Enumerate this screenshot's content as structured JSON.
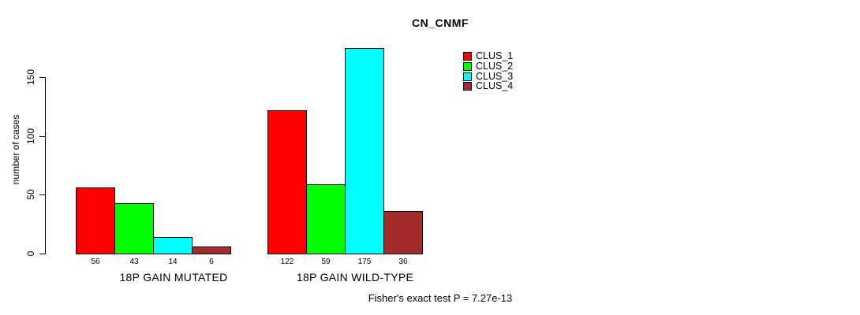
{
  "title": "CN_CNMF",
  "chart_data": {
    "type": "bar",
    "title": "CN_CNMF",
    "ylabel": "number of cases",
    "xlabel": "",
    "ylim": [
      0,
      150
    ],
    "yticks": [
      0,
      50,
      100,
      150
    ],
    "grid": false,
    "legend_position": "top-right",
    "categories": [
      "18P GAIN MUTATED",
      "18P GAIN WILD-TYPE"
    ],
    "series": [
      {
        "name": "CLUS_1",
        "color": "#FF0000",
        "values": [
          56,
          122
        ]
      },
      {
        "name": "CLUS_2",
        "color": "#00FF00",
        "values": [
          43,
          59
        ]
      },
      {
        "name": "CLUS_3",
        "color": "#00FFFF",
        "values": [
          14,
          175
        ]
      },
      {
        "name": "CLUS_4",
        "color": "#A52A2A",
        "values": [
          6,
          36
        ]
      }
    ],
    "bar_value_labels": [
      [
        56,
        43,
        14,
        6
      ],
      [
        122,
        59,
        175,
        36
      ]
    ],
    "annotation": "Fisher's exact test P = 7.27e-13",
    "bar_border_color": "#000000",
    "axis_color": "#000000"
  }
}
